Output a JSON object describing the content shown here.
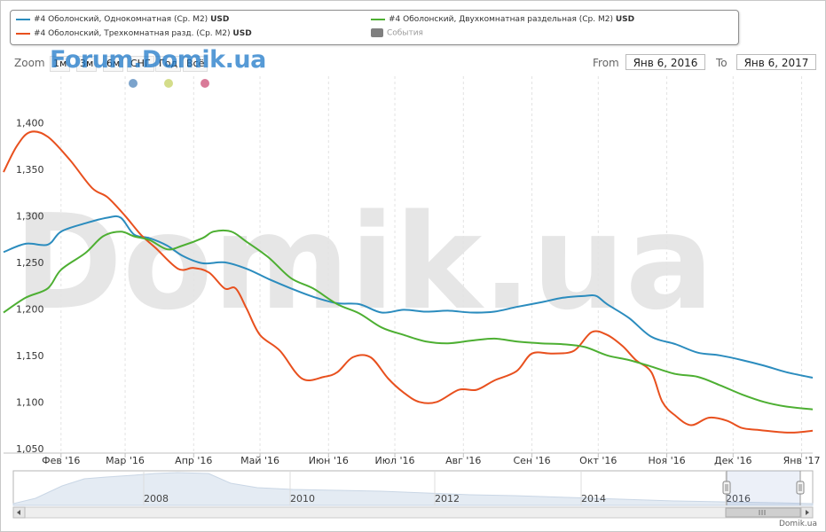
{
  "legend": {
    "s1": "#4 Оболонский, Однокомнатная (Ср. М2)",
    "s2": "#4 Оболонский, Трехкомнатная разд. (Ср. М2)",
    "s3": "#4 Оболонский, Двухкомнатная раздельная (Ср. М2)",
    "currency": "USD",
    "events": "События"
  },
  "toolbar": {
    "zoom_label": "Zoom",
    "buttons": [
      "1м",
      "3м",
      "6м",
      "СНГ",
      "Год",
      "Всё"
    ],
    "from_label": "From",
    "from_value": "Янв 6, 2016",
    "to_label": "To",
    "to_value": "Янв 6, 2017"
  },
  "watermark_small": "Forum.Domik.ua",
  "watermark_big": "Domik.ua",
  "footer": "Domik.ua",
  "colors": {
    "s1": "#2b8cbe",
    "s2": "#e8501e",
    "s3": "#4daf32",
    "dot1": "#7ba3cc",
    "dot2": "#d4dd8a",
    "dot3": "#d97a98"
  },
  "chart_data": {
    "type": "line",
    "y_ticks": [
      "1,050",
      "1,100",
      "1,150",
      "1,200",
      "1,250",
      "1,300",
      "1,350",
      "1,400"
    ],
    "ylim": [
      1045,
      1450
    ],
    "x_labels": [
      "Фев '16",
      "Мар '16",
      "Апр '16",
      "Май '16",
      "Июн '16",
      "Июл '16",
      "Авг '16",
      "Сен '16",
      "Окт '16",
      "Ноя '16",
      "Дек '16",
      "Янв '17"
    ],
    "x_range": [
      "2016-01-06",
      "2017-01-06"
    ],
    "grid": "vertical",
    "legend_position": "top",
    "series": [
      {
        "name": "#4 Оболонский, Однокомнатная (Ср. М2)",
        "color": "#2b8cbe",
        "x": [
          "2016-01-06",
          "2016-01-16",
          "2016-01-26",
          "2016-02-01",
          "2016-02-12",
          "2016-02-22",
          "2016-02-28",
          "2016-03-05",
          "2016-03-12",
          "2016-03-20",
          "2016-03-27",
          "2016-04-05",
          "2016-04-15",
          "2016-04-25",
          "2016-05-05",
          "2016-05-15",
          "2016-05-25",
          "2016-06-05",
          "2016-06-15",
          "2016-06-25",
          "2016-07-05",
          "2016-07-15",
          "2016-07-25",
          "2016-08-05",
          "2016-08-15",
          "2016-08-25",
          "2016-09-05",
          "2016-09-15",
          "2016-09-25",
          "2016-09-30",
          "2016-10-05",
          "2016-10-15",
          "2016-10-25",
          "2016-11-05",
          "2016-11-15",
          "2016-11-25",
          "2016-12-05",
          "2016-12-15",
          "2016-12-25",
          "2017-01-06"
        ],
        "y": [
          1261,
          1270,
          1269,
          1283,
          1292,
          1298,
          1298,
          1280,
          1276,
          1268,
          1257,
          1249,
          1250,
          1243,
          1232,
          1222,
          1213,
          1206,
          1205,
          1196,
          1199,
          1197,
          1198,
          1196,
          1197,
          1202,
          1207,
          1212,
          1214,
          1214,
          1205,
          1190,
          1170,
          1162,
          1153,
          1150,
          1145,
          1139,
          1132,
          1126
        ]
      },
      {
        "name": "#4 Оболонский, Трехкомнатная разд. (Ср. М2)",
        "color": "#e8501e",
        "x": [
          "2016-01-06",
          "2016-01-12",
          "2016-01-18",
          "2016-01-26",
          "2016-02-05",
          "2016-02-15",
          "2016-02-22",
          "2016-03-01",
          "2016-03-08",
          "2016-03-15",
          "2016-03-25",
          "2016-04-01",
          "2016-04-08",
          "2016-04-15",
          "2016-04-20",
          "2016-04-25",
          "2016-05-01",
          "2016-05-10",
          "2016-05-20",
          "2016-05-30",
          "2016-06-05",
          "2016-06-12",
          "2016-06-20",
          "2016-06-28",
          "2016-07-05",
          "2016-07-12",
          "2016-07-20",
          "2016-07-30",
          "2016-08-07",
          "2016-08-15",
          "2016-08-25",
          "2016-09-01",
          "2016-09-10",
          "2016-09-20",
          "2016-09-28",
          "2016-10-05",
          "2016-10-12",
          "2016-10-18",
          "2016-10-25",
          "2016-10-30",
          "2016-11-05",
          "2016-11-12",
          "2016-11-20",
          "2016-11-28",
          "2016-12-05",
          "2016-12-12",
          "2016-12-20",
          "2016-12-28",
          "2017-01-06"
        ],
        "y": [
          1347,
          1375,
          1390,
          1385,
          1360,
          1330,
          1320,
          1300,
          1280,
          1265,
          1243,
          1244,
          1239,
          1222,
          1222,
          1200,
          1172,
          1155,
          1125,
          1127,
          1132,
          1148,
          1148,
          1125,
          1110,
          1100,
          1100,
          1113,
          1113,
          1123,
          1133,
          1152,
          1152,
          1155,
          1175,
          1172,
          1160,
          1145,
          1132,
          1100,
          1085,
          1075,
          1083,
          1080,
          1072,
          1070,
          1068,
          1067,
          1069
        ]
      },
      {
        "name": "#4 Оболонский, Двухкомнатная раздельная (Ср. М2)",
        "color": "#4daf32",
        "x": [
          "2016-01-06",
          "2016-01-16",
          "2016-01-26",
          "2016-02-01",
          "2016-02-12",
          "2016-02-20",
          "2016-02-28",
          "2016-03-05",
          "2016-03-12",
          "2016-03-20",
          "2016-03-27",
          "2016-04-05",
          "2016-04-10",
          "2016-04-18",
          "2016-04-25",
          "2016-05-05",
          "2016-05-15",
          "2016-05-25",
          "2016-06-05",
          "2016-06-15",
          "2016-06-25",
          "2016-07-05",
          "2016-07-15",
          "2016-07-25",
          "2016-08-05",
          "2016-08-15",
          "2016-08-25",
          "2016-09-05",
          "2016-09-15",
          "2016-09-25",
          "2016-10-05",
          "2016-10-15",
          "2016-10-25",
          "2016-11-05",
          "2016-11-15",
          "2016-11-25",
          "2016-12-05",
          "2016-12-15",
          "2016-12-25",
          "2017-01-06"
        ],
        "y": [
          1196,
          1212,
          1222,
          1242,
          1260,
          1278,
          1283,
          1278,
          1274,
          1264,
          1268,
          1276,
          1283,
          1283,
          1272,
          1255,
          1233,
          1222,
          1205,
          1195,
          1180,
          1172,
          1165,
          1163,
          1166,
          1168,
          1165,
          1163,
          1162,
          1159,
          1150,
          1145,
          1138,
          1130,
          1127,
          1118,
          1108,
          1100,
          1095,
          1092
        ]
      }
    ]
  },
  "navigator": {
    "years": [
      "2008",
      "2010",
      "2012",
      "2014",
      "2016"
    ]
  }
}
